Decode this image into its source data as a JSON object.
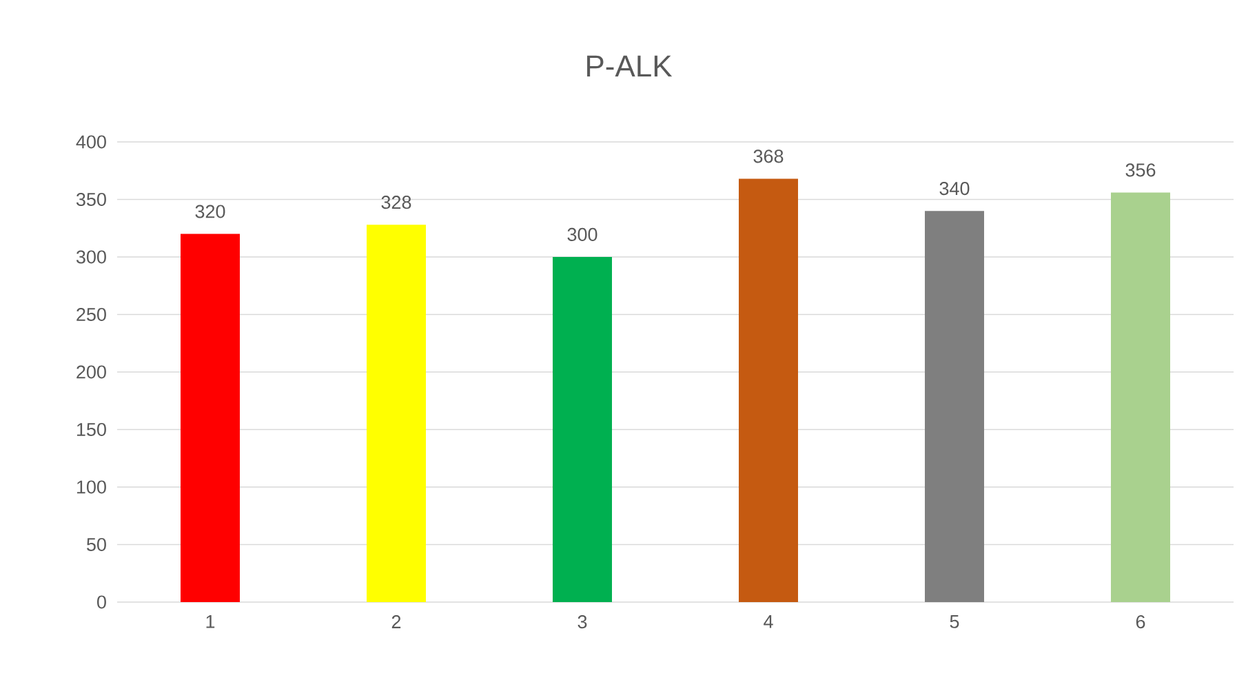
{
  "chart_data": {
    "type": "bar",
    "title": "P-ALK",
    "categories": [
      "1",
      "2",
      "3",
      "4",
      "5",
      "6"
    ],
    "values": [
      320,
      328,
      300,
      368,
      340,
      356
    ],
    "colors": [
      "#ff0000",
      "#ffff00",
      "#00b050",
      "#c55a11",
      "#7f7f7f",
      "#a9d18e"
    ],
    "ylim": [
      0,
      400
    ],
    "yticks": [
      0,
      50,
      100,
      150,
      200,
      250,
      300,
      350,
      400
    ],
    "grid": "y",
    "data_labels": true
  }
}
